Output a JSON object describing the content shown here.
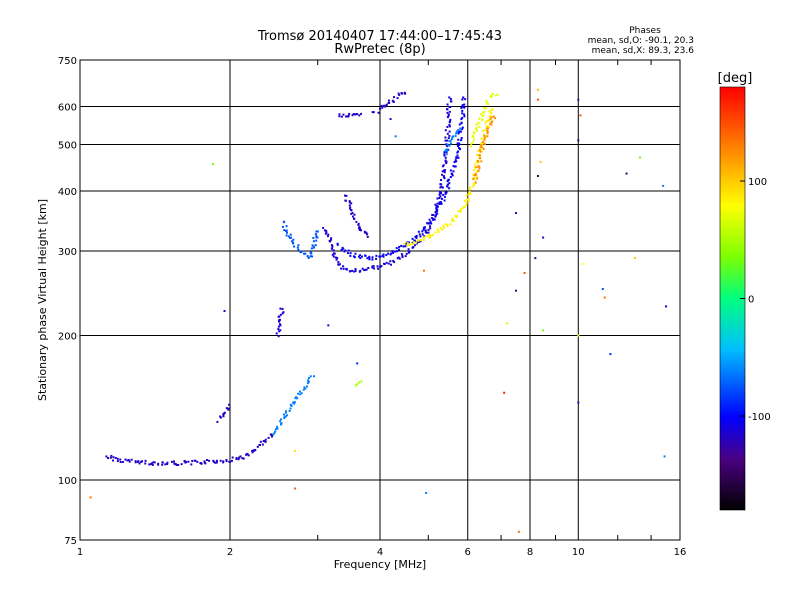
{
  "chart_data": {
    "type": "scatter",
    "title": "Tromsø 20140407 17:44:00–17:45:43",
    "subtitle": "RwPretec (8p)",
    "xlabel": "Frequency [MHz]",
    "ylabel": "Stationary phase Virtual Height [km]",
    "x_scale": "log",
    "y_scale": "log",
    "xlim": [
      1,
      16
    ],
    "ylim": [
      75,
      750
    ],
    "x_ticks": [
      1,
      2,
      4,
      6,
      8,
      10,
      16
    ],
    "y_ticks": [
      75,
      100,
      200,
      300,
      400,
      500,
      600,
      750
    ],
    "grid": true,
    "phase_info": {
      "heading": "Phases",
      "o_line": "mean, sd,O: -90.1, 20.3",
      "x_line": "mean, sd,X: 89.3, 23.6"
    },
    "colorbar": {
      "label": "[deg]",
      "range": [
        -180,
        180
      ],
      "ticks": [
        -100,
        0,
        100
      ],
      "colors": [
        "#000000",
        "#4b0082",
        "#0000ff",
        "#00bfff",
        "#00ff7f",
        "#7fff00",
        "#ffff00",
        "#ff7f00",
        "#ff0000"
      ]
    },
    "series": [
      {
        "trace": [
          {
            "x": 1.13,
            "y": 112
          },
          {
            "x": 1.2,
            "y": 110
          },
          {
            "x": 1.3,
            "y": 109
          },
          {
            "x": 1.4,
            "y": 108.5
          },
          {
            "x": 1.6,
            "y": 108.5
          },
          {
            "x": 1.8,
            "y": 109
          },
          {
            "x": 2.0,
            "y": 110
          },
          {
            "x": 2.15,
            "y": 112
          },
          {
            "x": 2.3,
            "y": 118
          },
          {
            "x": 2.45,
            "y": 125
          }
        ],
        "phase": -110
      },
      {
        "trace": [
          {
            "x": 1.9,
            "y": 133
          },
          {
            "x": 1.95,
            "y": 137
          },
          {
            "x": 2.0,
            "y": 143
          }
        ],
        "phase": -110
      },
      {
        "trace": [
          {
            "x": 2.45,
            "y": 125
          },
          {
            "x": 2.55,
            "y": 133
          },
          {
            "x": 2.65,
            "y": 143
          },
          {
            "x": 2.75,
            "y": 150
          },
          {
            "x": 2.85,
            "y": 158
          },
          {
            "x": 2.95,
            "y": 165
          }
        ],
        "phase": -60
      },
      {
        "trace": [
          {
            "x": 2.5,
            "y": 200
          },
          {
            "x": 2.52,
            "y": 215
          },
          {
            "x": 2.55,
            "y": 230
          }
        ],
        "phase": -105
      },
      {
        "trace": [
          {
            "x": 2.55,
            "y": 345
          },
          {
            "x": 2.6,
            "y": 330
          },
          {
            "x": 2.7,
            "y": 310
          },
          {
            "x": 2.8,
            "y": 295
          },
          {
            "x": 2.9,
            "y": 290
          },
          {
            "x": 2.95,
            "y": 310
          },
          {
            "x": 3.0,
            "y": 335
          }
        ],
        "phase": -70
      },
      {
        "trace": [
          {
            "x": 3.1,
            "y": 335
          },
          {
            "x": 3.2,
            "y": 310
          },
          {
            "x": 3.3,
            "y": 280
          },
          {
            "x": 3.5,
            "y": 272
          },
          {
            "x": 3.8,
            "y": 275
          },
          {
            "x": 4.2,
            "y": 283
          },
          {
            "x": 4.6,
            "y": 300
          },
          {
            "x": 5.0,
            "y": 330
          },
          {
            "x": 5.2,
            "y": 370
          },
          {
            "x": 5.35,
            "y": 420
          },
          {
            "x": 5.45,
            "y": 500
          },
          {
            "x": 5.5,
            "y": 580
          },
          {
            "x": 5.52,
            "y": 630
          }
        ],
        "phase": -105
      },
      {
        "trace": [
          {
            "x": 3.3,
            "y": 310
          },
          {
            "x": 3.5,
            "y": 295
          },
          {
            "x": 3.9,
            "y": 290
          },
          {
            "x": 4.3,
            "y": 300
          },
          {
            "x": 4.7,
            "y": 318
          },
          {
            "x": 5.1,
            "y": 350
          },
          {
            "x": 5.45,
            "y": 400
          },
          {
            "x": 5.7,
            "y": 470
          },
          {
            "x": 5.85,
            "y": 560
          },
          {
            "x": 5.9,
            "y": 630
          }
        ],
        "phase": -95
      },
      {
        "trace": [
          {
            "x": 3.4,
            "y": 390
          },
          {
            "x": 3.5,
            "y": 370
          },
          {
            "x": 3.6,
            "y": 340
          },
          {
            "x": 3.8,
            "y": 320
          }
        ],
        "phase": -110
      },
      {
        "trace": [
          {
            "x": 3.3,
            "y": 575
          },
          {
            "x": 3.5,
            "y": 575
          },
          {
            "x": 3.7,
            "y": 575
          }
        ],
        "phase": -110
      },
      {
        "trace": [
          {
            "x": 3.9,
            "y": 580
          },
          {
            "x": 4.1,
            "y": 605
          },
          {
            "x": 4.35,
            "y": 630
          },
          {
            "x": 4.5,
            "y": 645
          }
        ],
        "phase": -110
      },
      {
        "trace": [
          {
            "x": 4.5,
            "y": 308
          },
          {
            "x": 4.8,
            "y": 315
          },
          {
            "x": 5.1,
            "y": 325
          },
          {
            "x": 5.5,
            "y": 340
          },
          {
            "x": 5.9,
            "y": 370
          },
          {
            "x": 6.1,
            "y": 400
          },
          {
            "x": 6.3,
            "y": 470
          },
          {
            "x": 6.5,
            "y": 530
          },
          {
            "x": 6.7,
            "y": 600
          }
        ],
        "phase": 95
      },
      {
        "trace": [
          {
            "x": 6.1,
            "y": 500
          },
          {
            "x": 6.3,
            "y": 550
          },
          {
            "x": 6.6,
            "y": 620
          },
          {
            "x": 6.9,
            "y": 640
          }
        ],
        "phase": 80
      },
      {
        "trace": [
          {
            "x": 6.2,
            "y": 420
          },
          {
            "x": 6.5,
            "y": 520
          },
          {
            "x": 6.8,
            "y": 580
          }
        ],
        "phase": 130
      },
      {
        "trace": [
          {
            "x": 5.4,
            "y": 480
          },
          {
            "x": 5.6,
            "y": 520
          },
          {
            "x": 5.8,
            "y": 540
          }
        ],
        "phase": -60
      },
      {
        "trace": [
          {
            "x": 3.6,
            "y": 158
          },
          {
            "x": 3.65,
            "y": 162
          }
        ],
        "phase": 60
      }
    ],
    "scatter": [
      {
        "x": 1.05,
        "y": 92,
        "phase": 140
      },
      {
        "x": 1.85,
        "y": 455,
        "phase": 40
      },
      {
        "x": 1.95,
        "y": 225,
        "phase": -110
      },
      {
        "x": 2.7,
        "y": 96,
        "phase": 145
      },
      {
        "x": 2.7,
        "y": 115,
        "phase": 100
      },
      {
        "x": 3.15,
        "y": 210,
        "phase": -110
      },
      {
        "x": 3.6,
        "y": 175,
        "phase": -80
      },
      {
        "x": 4.2,
        "y": 565,
        "phase": -110
      },
      {
        "x": 4.3,
        "y": 520,
        "phase": -60
      },
      {
        "x": 4.9,
        "y": 273,
        "phase": 140
      },
      {
        "x": 4.95,
        "y": 94,
        "phase": -60
      },
      {
        "x": 7.1,
        "y": 152,
        "phase": 170
      },
      {
        "x": 7.2,
        "y": 212,
        "phase": 70
      },
      {
        "x": 7.5,
        "y": 360,
        "phase": -120
      },
      {
        "x": 7.5,
        "y": 248,
        "phase": -130
      },
      {
        "x": 7.6,
        "y": 78,
        "phase": 140
      },
      {
        "x": 7.8,
        "y": 270,
        "phase": 150
      },
      {
        "x": 8.2,
        "y": 290,
        "phase": -120
      },
      {
        "x": 8.3,
        "y": 430,
        "phase": -150
      },
      {
        "x": 8.3,
        "y": 650,
        "phase": 110
      },
      {
        "x": 8.3,
        "y": 620,
        "phase": 150
      },
      {
        "x": 8.4,
        "y": 460,
        "phase": 110
      },
      {
        "x": 8.5,
        "y": 320,
        "phase": -110
      },
      {
        "x": 8.5,
        "y": 205,
        "phase": 40
      },
      {
        "x": 10.0,
        "y": 620,
        "phase": -130
      },
      {
        "x": 10.0,
        "y": 510,
        "phase": -150
      },
      {
        "x": 10.1,
        "y": 575,
        "phase": 150
      },
      {
        "x": 10.0,
        "y": 145,
        "phase": -120
      },
      {
        "x": 10.2,
        "y": 282,
        "phase": 90
      },
      {
        "x": 11.2,
        "y": 250,
        "phase": -70
      },
      {
        "x": 11.3,
        "y": 240,
        "phase": 140
      },
      {
        "x": 11.6,
        "y": 183,
        "phase": -80
      },
      {
        "x": 12.5,
        "y": 435,
        "phase": -150
      },
      {
        "x": 13.0,
        "y": 290,
        "phase": 110
      },
      {
        "x": 13.3,
        "y": 470,
        "phase": 40
      },
      {
        "x": 14.8,
        "y": 410,
        "phase": -60
      },
      {
        "x": 15.0,
        "y": 230,
        "phase": -100
      },
      {
        "x": 14.9,
        "y": 112,
        "phase": -60
      },
      {
        "x": 10.0,
        "y": 200,
        "phase": 90
      }
    ]
  }
}
